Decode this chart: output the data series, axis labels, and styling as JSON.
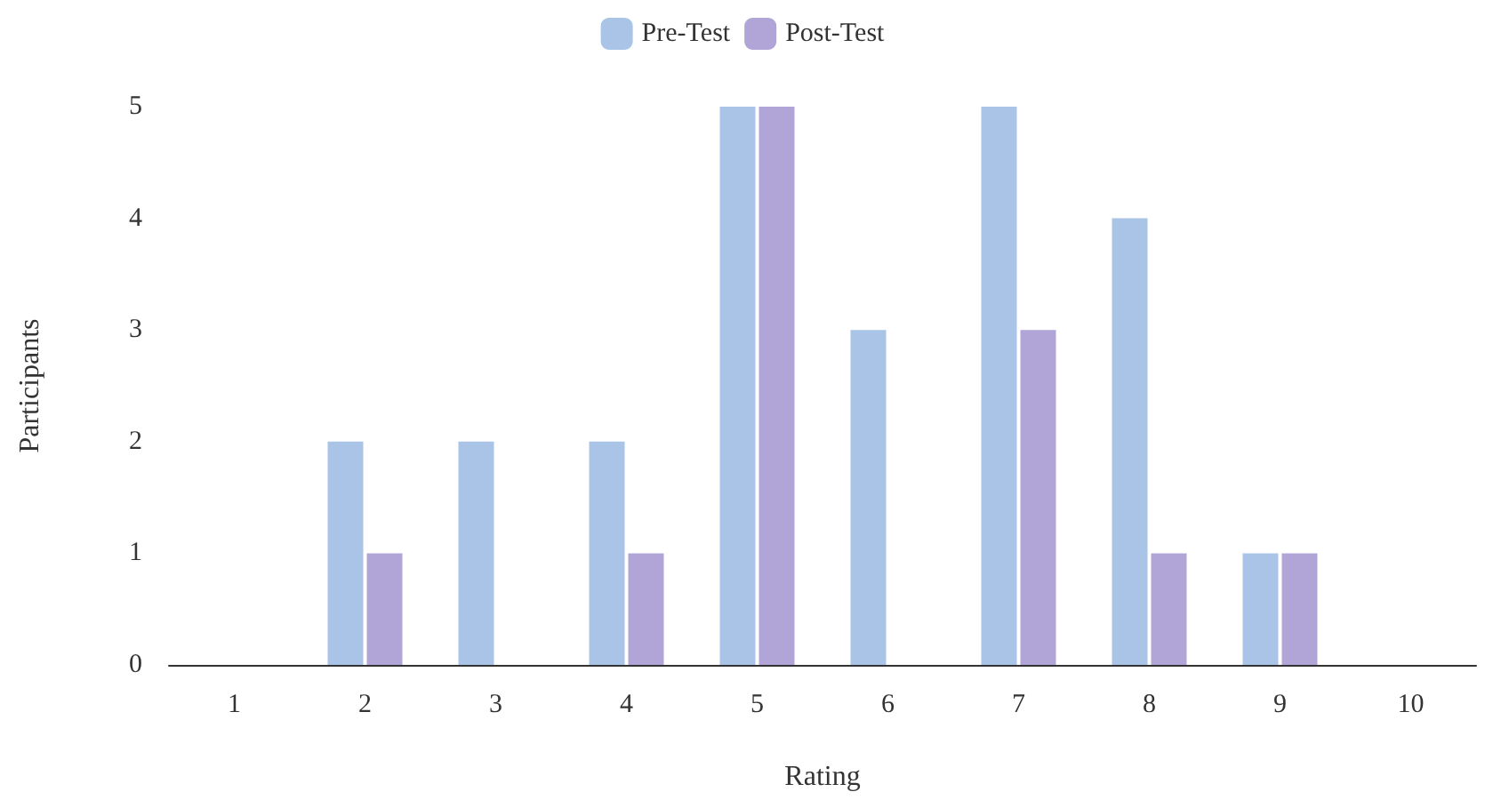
{
  "chart_data": {
    "type": "bar",
    "xlabel": "Rating",
    "ylabel": "Participants",
    "categories": [
      "1",
      "2",
      "3",
      "4",
      "5",
      "6",
      "7",
      "8",
      "9",
      "10"
    ],
    "series": [
      {
        "name": "Pre-Test",
        "color": "#a9c4e6",
        "values": [
          0,
          2,
          2,
          2,
          5,
          3,
          5,
          4,
          1,
          0
        ]
      },
      {
        "name": "Post-Test",
        "color": "#b1a5d8",
        "values": [
          0,
          1,
          0,
          1,
          5,
          0,
          3,
          1,
          1,
          0
        ]
      }
    ],
    "ylim": [
      0,
      5
    ],
    "yticks": [
      0,
      1,
      2,
      3,
      4,
      5
    ],
    "legend": "top"
  }
}
